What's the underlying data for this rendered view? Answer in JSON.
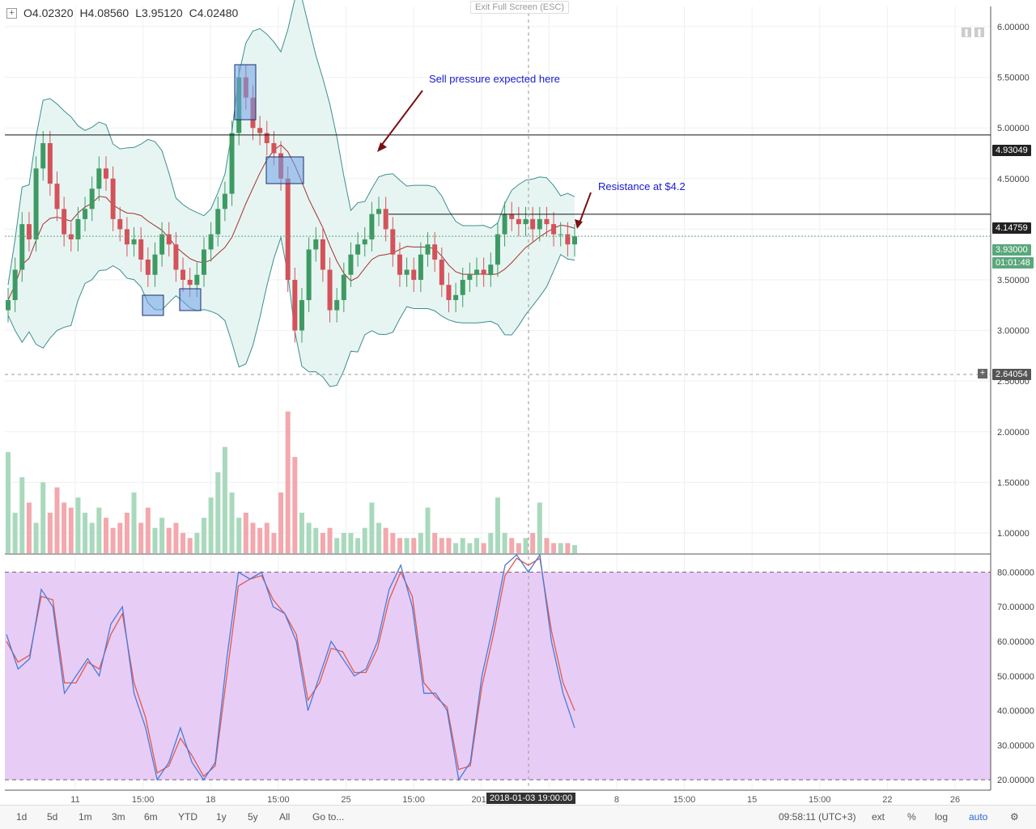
{
  "ohlc": {
    "open": "O4.02320",
    "high": "H4.08560",
    "low": "L3.95120",
    "close": "C4.02480"
  },
  "exit_fullscreen": "Exit Full Screen (ESC)",
  "annotations": {
    "sell": "Sell pressure expected here",
    "resistance": "Resistance at $4.2"
  },
  "badges": {
    "line1": "4.93049",
    "line2": "4.14759",
    "price": "3.93000",
    "timer": "01:01:48",
    "crosshair": "2.64054"
  },
  "crosshair_date": "2018-01-03 19:00:00",
  "colors": {
    "up": "#3e9a63",
    "down": "#d4525a",
    "vol_up": "#a9d9bd",
    "vol_down": "#f2a8ad",
    "band_fill": "#e7f5f2",
    "band_line": "#3e8e8e",
    "ma": "#a13030",
    "stoch_fill": "#e7cdf6",
    "k_line": "#4a7bd8",
    "d_line": "#e2594a",
    "vol_ma": "#f08a45"
  },
  "toolbar": {
    "ranges": [
      "1d",
      "5d",
      "1m",
      "3m",
      "6m",
      "YTD",
      "1y",
      "5y",
      "All"
    ],
    "goto": "Go to...",
    "time": "09:58:11 (UTC+3)",
    "opts": [
      "ext",
      "%",
      "log",
      "auto"
    ]
  },
  "chart_data": [
    {
      "type": "candlestick",
      "title": "",
      "ylim": [
        0.8,
        6.2
      ],
      "yticks": [
        "6.00000",
        "5.50000",
        "5.00000",
        "4.50000",
        "4.00000",
        "3.50000",
        "3.00000",
        "2.50000",
        "2.00000",
        "1.50000",
        "1.00000"
      ],
      "ytick_values": [
        6.0,
        5.5,
        5.0,
        4.5,
        4.0,
        3.5,
        3.0,
        2.5,
        2.0,
        1.5,
        1.0
      ],
      "xticks": [
        "11",
        "15:00",
        "18",
        "15:00",
        "25",
        "15:00",
        "2018",
        "15:00",
        "8",
        "15:00",
        "15",
        "15:00",
        "22",
        "26"
      ],
      "horizontal_lines": [
        4.93049,
        4.14759
      ],
      "last_price": 3.93,
      "volume_max_price_axis": 2.2,
      "close": [
        3.3,
        3.6,
        4.05,
        3.9,
        4.6,
        4.85,
        4.45,
        4.2,
        3.95,
        3.9,
        4.1,
        4.2,
        4.4,
        4.6,
        4.5,
        4.1,
        4.0,
        3.85,
        3.9,
        3.7,
        3.55,
        3.75,
        3.95,
        3.85,
        3.6,
        3.5,
        3.45,
        3.55,
        3.8,
        3.95,
        4.2,
        4.35,
        4.95,
        5.5,
        5.3,
        5.0,
        4.95,
        4.85,
        4.75,
        4.5,
        3.5,
        3.0,
        3.3,
        3.8,
        3.9,
        3.6,
        3.2,
        3.3,
        3.55,
        3.75,
        3.85,
        3.9,
        4.15,
        4.2,
        4.0,
        3.75,
        3.55,
        3.6,
        3.5,
        3.75,
        3.85,
        3.7,
        3.45,
        3.3,
        3.35,
        3.5,
        3.55,
        3.6,
        3.55,
        3.65,
        3.95,
        4.15,
        4.1,
        4.05,
        4.1,
        4.0,
        4.1,
        4.05,
        3.95,
        3.95,
        3.85,
        3.93
      ],
      "volume": [
        1.8,
        1.2,
        1.55,
        1.3,
        1.1,
        1.5,
        1.2,
        1.45,
        1.3,
        1.25,
        1.35,
        1.2,
        1.1,
        1.25,
        1.15,
        1.05,
        1.1,
        1.2,
        1.4,
        1.1,
        1.25,
        1.05,
        1.15,
        1.05,
        1.1,
        1.0,
        0.95,
        1.0,
        1.15,
        1.35,
        1.6,
        1.85,
        1.4,
        1.15,
        1.2,
        1.1,
        1.05,
        1.1,
        1.0,
        1.4,
        2.2,
        1.75,
        1.2,
        1.1,
        1.05,
        1.0,
        1.05,
        0.95,
        1.0,
        1.0,
        0.95,
        1.05,
        1.3,
        1.1,
        1.05,
        1.0,
        0.95,
        0.95,
        0.95,
        1.0,
        1.25,
        1.0,
        0.95,
        0.95,
        0.9,
        0.95,
        0.9,
        0.95,
        0.9,
        1.0,
        1.35,
        1.0,
        0.95,
        0.9,
        0.95,
        1.0,
        1.3,
        0.95,
        0.9,
        0.9,
        0.9,
        0.88
      ]
    },
    {
      "type": "line",
      "title": "",
      "ylim": [
        17,
        85
      ],
      "yticks": [
        "80.00000",
        "70.00000",
        "60.00000",
        "50.00000",
        "40.00000",
        "30.00000",
        "20.00000"
      ],
      "ytick_values": [
        80,
        70,
        60,
        50,
        40,
        30,
        20
      ],
      "bands": [
        20,
        80
      ],
      "series": [
        {
          "values": [
            62,
            52,
            55,
            75,
            70,
            45,
            50,
            55,
            50,
            65,
            70,
            45,
            35,
            20,
            25,
            35,
            25,
            20,
            25,
            55,
            80,
            78,
            80,
            70,
            68,
            60,
            40,
            50,
            60,
            55,
            50,
            52,
            60,
            75,
            82,
            70,
            45,
            45,
            40,
            20,
            25,
            50,
            65,
            82,
            85,
            80,
            85,
            60,
            45,
            35
          ]
        },
        {
          "values": [
            60,
            54,
            56,
            73,
            72,
            48,
            48,
            54,
            52,
            62,
            68,
            48,
            38,
            22,
            24,
            32,
            27,
            21,
            24,
            50,
            76,
            78,
            79,
            72,
            68,
            62,
            43,
            48,
            58,
            57,
            51,
            51,
            58,
            72,
            80,
            73,
            48,
            44,
            41,
            23,
            24,
            47,
            62,
            79,
            84,
            82,
            84,
            63,
            48,
            40
          ]
        }
      ]
    }
  ]
}
